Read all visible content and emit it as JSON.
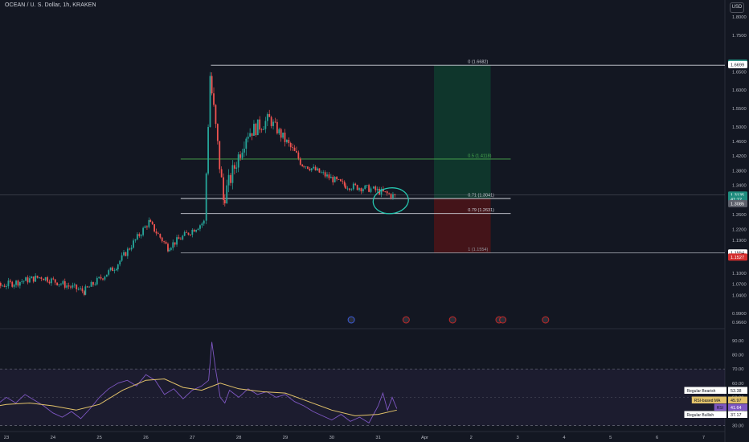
{
  "header": {
    "symbol_line": "OCEAN / U. S. Dollar, 1h, KRAKEN",
    "currency_button": "USD"
  },
  "colors": {
    "background": "#131722",
    "up": "#26a69a",
    "down": "#ef5350",
    "rsi_line": "#7e57c2",
    "rsi_ma": "#e2c26a",
    "fib_line": "#d1d4dc",
    "fib_mid": "#4caf50",
    "profit_zone": "#0f3a2e",
    "loss_zone": "#4a1418",
    "annotation_ellipse": "#26c6b0"
  },
  "chart_data": [
    {
      "type": "candlestick",
      "x_axis_labels": [
        "23",
        "24",
        "25",
        "26",
        "27",
        "28",
        "29",
        "30",
        "31",
        "Apr",
        "2",
        "3",
        "4",
        "5",
        "6",
        "7"
      ],
      "y_axis_ticks": [
        "1.8000",
        "1.7500",
        "1.6500",
        "1.6000",
        "1.5500",
        "1.5000",
        "1.4600",
        "1.4200",
        "1.3800",
        "1.3400",
        "1.2600",
        "1.2200",
        "1.1900",
        "1.1000",
        "1.0700",
        "1.0400",
        "0.9900",
        "0.9660"
      ],
      "ylim": [
        0.955,
        1.82
      ],
      "price_tags": [
        {
          "label": "1.6738",
          "value": 1.6738,
          "style": "green"
        },
        {
          "label": "1.6699",
          "value": 1.6699,
          "style": "white"
        },
        {
          "label": "1.3135",
          "value": 1.3135,
          "style": "green"
        },
        {
          "label": "41:12",
          "value": 1.3018,
          "style": "green"
        },
        {
          "label": "1.3085",
          "value": 1.29,
          "style": "gray"
        },
        {
          "label": "1.1554",
          "value": 1.1554,
          "style": "white"
        },
        {
          "label": "1.1527",
          "value": 1.144,
          "style": "red"
        }
      ],
      "fib_levels": [
        {
          "label": "0 (1.6682)",
          "value": 1.6682,
          "style": "white"
        },
        {
          "label": "0.5 (1.4118)",
          "value": 1.4118,
          "style": "green"
        },
        {
          "label": "0.71 (1.3041)",
          "value": 1.3041,
          "style": "white"
        },
        {
          "label": "0.79 (1.2631)",
          "value": 1.2631,
          "style": "white"
        },
        {
          "label": "1 (1.1554)",
          "value": 1.1554,
          "style": "gray"
        }
      ],
      "position_tool": {
        "entry": 1.3041,
        "target": 1.6682,
        "stop": 1.1554,
        "start_day": 32.2,
        "end_day": 33.42
      },
      "price_segments": [
        {
          "from_day": 22.0,
          "to_day": 23.8,
          "start": 1.04,
          "end": 1.09,
          "noise": 0.02
        },
        {
          "from_day": 23.8,
          "to_day": 24.7,
          "start": 1.09,
          "end": 1.05,
          "noise": 0.02
        },
        {
          "from_day": 24.7,
          "to_day": 25.4,
          "start": 1.05,
          "end": 1.12,
          "noise": 0.02
        },
        {
          "from_day": 25.4,
          "to_day": 26.1,
          "start": 1.12,
          "end": 1.24,
          "noise": 0.02
        },
        {
          "from_day": 26.1,
          "to_day": 26.5,
          "start": 1.24,
          "end": 1.17,
          "noise": 0.02
        },
        {
          "from_day": 26.5,
          "to_day": 27.3,
          "start": 1.17,
          "end": 1.24,
          "noise": 0.02
        },
        {
          "from_day": 27.3,
          "to_day": 27.42,
          "start": 1.24,
          "end": 1.64,
          "noise": 0.03
        },
        {
          "from_day": 27.42,
          "to_day": 27.7,
          "start": 1.64,
          "end": 1.3,
          "noise": 0.06
        },
        {
          "from_day": 27.7,
          "to_day": 28.2,
          "start": 1.3,
          "end": 1.48,
          "noise": 0.05
        },
        {
          "from_day": 28.2,
          "to_day": 28.7,
          "start": 1.48,
          "end": 1.52,
          "noise": 0.04
        },
        {
          "from_day": 28.7,
          "to_day": 29.4,
          "start": 1.52,
          "end": 1.4,
          "noise": 0.03
        },
        {
          "from_day": 29.4,
          "to_day": 30.3,
          "start": 1.4,
          "end": 1.34,
          "noise": 0.02
        },
        {
          "from_day": 30.3,
          "to_day": 30.9,
          "start": 1.34,
          "end": 1.33,
          "noise": 0.02
        },
        {
          "from_day": 30.9,
          "to_day": 31.4,
          "start": 1.33,
          "end": 1.31,
          "noise": 0.02
        }
      ]
    },
    {
      "type": "line",
      "name": "RSI",
      "y_axis_ticks": [
        "90.00",
        "80.00",
        "70.00",
        "60.00",
        "50.00",
        "40.00",
        "30.00"
      ],
      "ylim": [
        27,
        95
      ],
      "bands": [
        30,
        70
      ],
      "rsi_series": [
        [
          22.0,
          42
        ],
        [
          22.2,
          46
        ],
        [
          22.4,
          44
        ],
        [
          22.6,
          49
        ],
        [
          22.8,
          45
        ],
        [
          23.0,
          50
        ],
        [
          23.2,
          46
        ],
        [
          23.4,
          52
        ],
        [
          23.6,
          48
        ],
        [
          23.8,
          44
        ],
        [
          24.0,
          39
        ],
        [
          24.2,
          36
        ],
        [
          24.4,
          40
        ],
        [
          24.6,
          35
        ],
        [
          24.8,
          42
        ],
        [
          25.0,
          50
        ],
        [
          25.2,
          56
        ],
        [
          25.4,
          60
        ],
        [
          25.6,
          62
        ],
        [
          25.8,
          58
        ],
        [
          26.0,
          66
        ],
        [
          26.2,
          62
        ],
        [
          26.4,
          52
        ],
        [
          26.6,
          56
        ],
        [
          26.8,
          49
        ],
        [
          27.0,
          55
        ],
        [
          27.2,
          58
        ],
        [
          27.35,
          62
        ],
        [
          27.42,
          89
        ],
        [
          27.5,
          70
        ],
        [
          27.6,
          50
        ],
        [
          27.7,
          46
        ],
        [
          27.8,
          55
        ],
        [
          28.0,
          50
        ],
        [
          28.2,
          56
        ],
        [
          28.4,
          52
        ],
        [
          28.6,
          54
        ],
        [
          28.8,
          50
        ],
        [
          29.0,
          52
        ],
        [
          29.2,
          47
        ],
        [
          29.4,
          44
        ],
        [
          29.6,
          40
        ],
        [
          29.8,
          37
        ],
        [
          30.0,
          34
        ],
        [
          30.2,
          38
        ],
        [
          30.4,
          33
        ],
        [
          30.6,
          36
        ],
        [
          30.8,
          32
        ],
        [
          31.0,
          44
        ],
        [
          31.1,
          53
        ],
        [
          31.2,
          41
        ],
        [
          31.3,
          50
        ],
        [
          31.4,
          42
        ]
      ],
      "rsi_ma_series": [
        [
          22.0,
          38
        ],
        [
          22.5,
          42
        ],
        [
          23.0,
          45
        ],
        [
          23.5,
          46
        ],
        [
          24.0,
          44
        ],
        [
          24.5,
          41
        ],
        [
          25.0,
          45
        ],
        [
          25.5,
          55
        ],
        [
          26.0,
          62
        ],
        [
          26.4,
          63
        ],
        [
          26.8,
          57
        ],
        [
          27.2,
          55
        ],
        [
          27.6,
          60
        ],
        [
          28.0,
          56
        ],
        [
          28.5,
          54
        ],
        [
          29.0,
          53
        ],
        [
          29.5,
          47
        ],
        [
          30.0,
          41
        ],
        [
          30.5,
          37
        ],
        [
          31.0,
          38
        ],
        [
          31.4,
          41
        ]
      ],
      "labels": [
        {
          "tag": "Regular Bearish",
          "value": "53.38"
        },
        {
          "tag": "RSI-based MA",
          "value": "45.97"
        },
        {
          "tag": "RSI",
          "value": "41.64"
        },
        {
          "tag": "Regular Bullish",
          "value": "37.17"
        }
      ]
    }
  ]
}
